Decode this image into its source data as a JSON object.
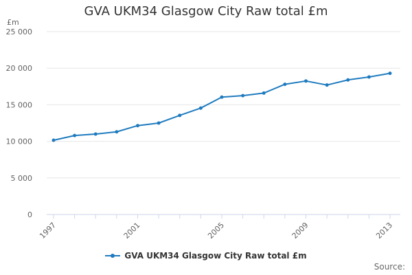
{
  "chart_data": {
    "type": "line",
    "title": "GVA UKM34 Glasgow City Raw total £m",
    "ylabel": "£m",
    "xlabel": "",
    "categories": [
      "1997",
      "1998",
      "1999",
      "2000",
      "2001",
      "2002",
      "2003",
      "2004",
      "2005",
      "2006",
      "2007",
      "2008",
      "2009",
      "2010",
      "2011",
      "2012",
      "2013"
    ],
    "x_tick_labels": [
      "1997",
      "2001",
      "2005",
      "2009",
      "2013"
    ],
    "y_ticks": [
      0,
      5000,
      10000,
      15000,
      20000,
      25000
    ],
    "y_tick_labels": [
      "0",
      "5 000",
      "10 000",
      "15 000",
      "20 000",
      "25 000"
    ],
    "ylim": [
      0,
      25000
    ],
    "series": [
      {
        "name": "GVA UKM34 Glasgow City Raw total £m",
        "values": [
          10150,
          10800,
          11000,
          11300,
          12150,
          12500,
          13550,
          14550,
          16050,
          16250,
          16600,
          17800,
          18250,
          17700,
          18400,
          18800,
          19300
        ],
        "color": "#1f7bbf"
      }
    ],
    "legend": "bottom-center",
    "grid": true
  },
  "source_label": "Source:",
  "colors": {
    "line": "#1f7bbf",
    "grid": "#e6e6e6",
    "axis": "#ccd6eb",
    "tick_text": "#606060"
  }
}
